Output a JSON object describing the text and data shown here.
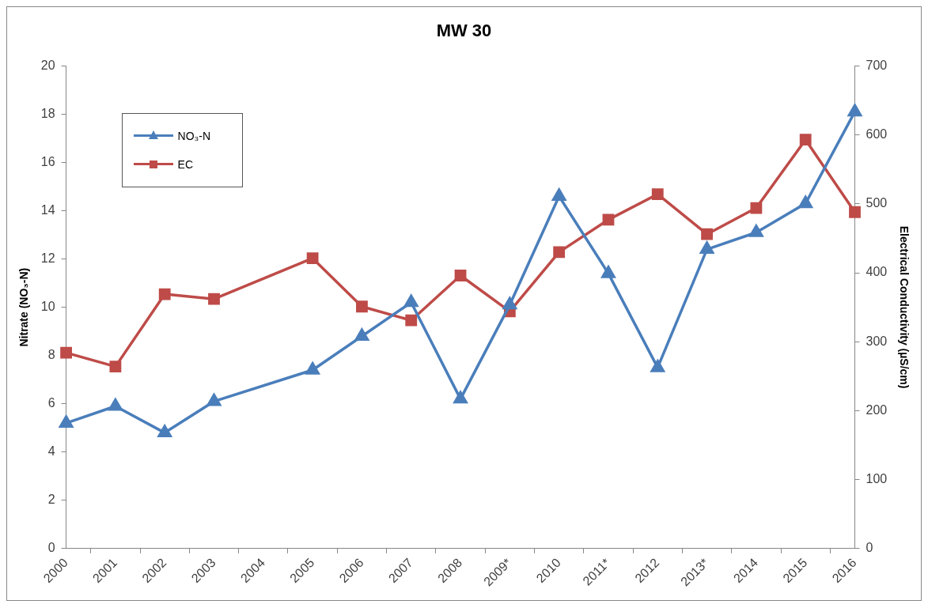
{
  "chart_data": {
    "type": "line",
    "title": "MW 30",
    "ylabel": "Nitrate (NO₃-N)",
    "y2label": "Electrical Conductivity (µS/cm)",
    "categories": [
      "2000",
      "2001",
      "2002",
      "2003",
      "2004",
      "2005",
      "2006",
      "2007",
      "2008",
      "2009*",
      "2010",
      "2011*",
      "2012",
      "2013*",
      "2014",
      "2015",
      "2016"
    ],
    "series": [
      {
        "name": "NO₃-N",
        "color": "#4a7ebb",
        "marker": "triangle",
        "values": [
          5.2,
          5.9,
          4.8,
          6.1,
          null,
          7.4,
          8.8,
          10.2,
          6.2,
          10.1,
          14.6,
          11.4,
          7.5,
          12.4,
          13.1,
          14.3,
          18.1
        ]
      },
      {
        "name": "EC",
        "color": "#be4b48",
        "marker": "square",
        "axis": "y2",
        "values": [
          284,
          264,
          369,
          362,
          null,
          421,
          351,
          331,
          396,
          344,
          430,
          477,
          514,
          456,
          494,
          593,
          488
        ]
      }
    ],
    "ylim": [
      0,
      20
    ],
    "yticks": [
      0,
      2,
      4,
      6,
      8,
      10,
      12,
      14,
      16,
      18,
      20
    ],
    "y2lim": [
      0,
      700
    ],
    "y2ticks": [
      0,
      100,
      200,
      300,
      400,
      500,
      600,
      700
    ],
    "grid": false,
    "legend": "top left",
    "line_style": "solid"
  }
}
